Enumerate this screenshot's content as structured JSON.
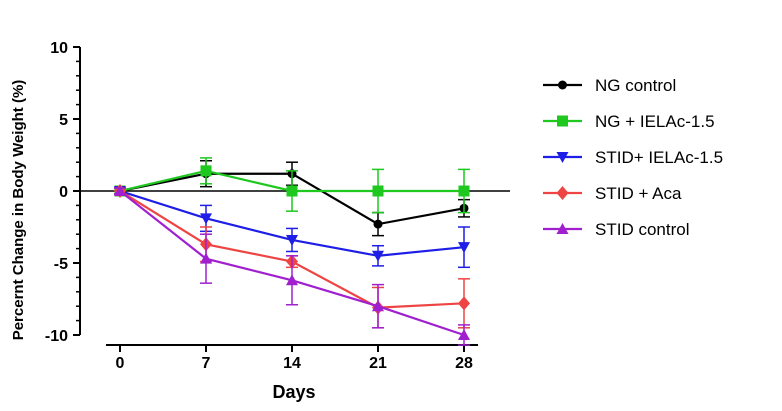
{
  "chart_data": {
    "type": "line",
    "title": "",
    "xlabel": "Days",
    "ylabel": "Percernt Change in Body Weight (%)",
    "x": [
      0,
      7,
      14,
      21,
      28
    ],
    "xticks": [
      "0",
      "7",
      "14",
      "21",
      "28"
    ],
    "yticks": [
      "10",
      "5",
      "0",
      "-5",
      "-10"
    ],
    "ylim": [
      -10,
      10
    ],
    "grid": false,
    "legend_position": "right",
    "series": [
      {
        "name": "NG control",
        "color": "#000000",
        "marker": "circle",
        "values": [
          0,
          1.2,
          1.2,
          -2.3,
          -1.2
        ],
        "errors": [
          0.2,
          0.9,
          0.8,
          0.8,
          0.6
        ]
      },
      {
        "name": "NG + IELAc-1.5",
        "color": "#1ec81e",
        "marker": "square",
        "values": [
          0,
          1.4,
          0,
          0,
          0
        ],
        "errors": [
          0.2,
          0.9,
          1.4,
          1.5,
          1.5
        ]
      },
      {
        "name": "STID+ IELAc-1.5",
        "color": "#1e1ee6",
        "marker": "triangle-down",
        "values": [
          0,
          -1.9,
          -3.4,
          -4.5,
          -3.9
        ],
        "errors": [
          0.2,
          0.9,
          0.8,
          0.7,
          1.4
        ]
      },
      {
        "name": "STID + Aca",
        "color": "#ee4444",
        "marker": "diamond",
        "values": [
          0,
          -3.7,
          -4.9,
          -8.1,
          -7.8
        ],
        "errors": [
          0.2,
          1.2,
          0.4,
          1.4,
          1.7
        ]
      },
      {
        "name": "STID control",
        "color": "#a020d0",
        "marker": "triangle-up",
        "values": [
          0,
          -4.7,
          -6.2,
          -8,
          -10
        ],
        "errors": [
          0.2,
          1.7,
          1.7,
          1.5,
          0.7
        ]
      }
    ]
  }
}
